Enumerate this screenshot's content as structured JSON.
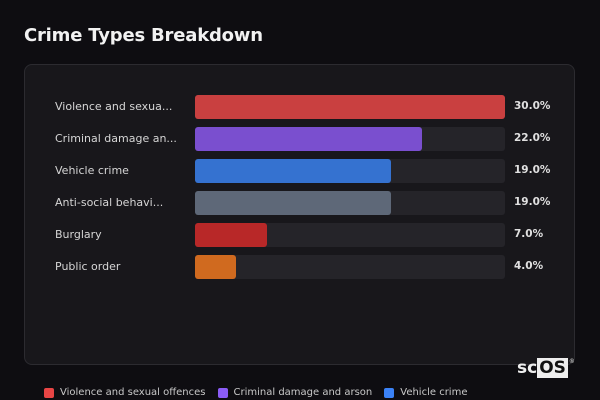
{
  "title": "Crime Types Breakdown",
  "chart_data": {
    "type": "bar",
    "orientation": "horizontal",
    "title": "Crime Types Breakdown",
    "categories": [
      "Violence and sexua...",
      "Criminal damage an...",
      "Vehicle crime",
      "Anti-social behavi...",
      "Burglary",
      "Public order"
    ],
    "values": [
      30.0,
      22.0,
      19.0,
      19.0,
      7.0,
      4.0
    ],
    "value_labels": [
      "30.0%",
      "22.0%",
      "19.0%",
      "19.0%",
      "7.0%",
      "4.0%"
    ],
    "colors": [
      "#c94040",
      "#7a4fcf",
      "#3572d0",
      "#5e6878",
      "#b82828",
      "#d06a1f"
    ],
    "xlim": [
      0,
      30
    ],
    "grid": false,
    "legend": {
      "placement": "bottom",
      "entries": [
        {
          "label": "Violence and sexual offences",
          "color": "#e84545"
        },
        {
          "label": "Criminal damage and arson",
          "color": "#8b5cf6"
        },
        {
          "label": "Vehicle crime",
          "color": "#3b82f6"
        }
      ]
    }
  },
  "logo": {
    "sc": "sc",
    "os": "OS",
    "mark": "®"
  }
}
